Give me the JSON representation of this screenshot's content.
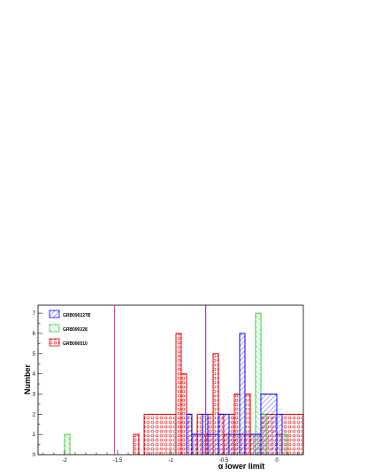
{
  "chart_data": {
    "type": "bar",
    "xlabel": "α lower limit",
    "ylabel": "Number",
    "xlim": [
      -2.25,
      0.25
    ],
    "ylim": [
      0,
      7.4
    ],
    "x_ticks": [
      "-2",
      "-1.5",
      "-1",
      "-0.5",
      "0"
    ],
    "y_ticks": [
      "0",
      "1",
      "2",
      "3",
      "4",
      "5",
      "6",
      "7"
    ],
    "legend_position": "top-left",
    "legend": [
      "GRB090227B",
      "GRB090228",
      "GRB090510"
    ],
    "bin_width": 0.05,
    "series": [
      {
        "name": "GRB090510",
        "color": "#e60000",
        "pattern": "hatched-circles",
        "bins": [
          {
            "x0": -1.35,
            "x1": -1.3,
            "value": 1
          },
          {
            "x0": -1.25,
            "x1": -0.95,
            "value": 2
          },
          {
            "x0": -0.95,
            "x1": -0.9,
            "value": 6
          },
          {
            "x0": -0.9,
            "x1": -0.85,
            "value": 4
          },
          {
            "x0": -0.85,
            "x1": -0.8,
            "value": 2
          },
          {
            "x0": -0.8,
            "x1": -0.75,
            "value": 1
          },
          {
            "x0": -0.75,
            "x1": -0.7,
            "value": 2
          },
          {
            "x0": -0.7,
            "x1": -0.65,
            "value": 1
          },
          {
            "x0": -0.65,
            "x1": -0.6,
            "value": 2
          },
          {
            "x0": -0.6,
            "x1": -0.55,
            "value": 5
          },
          {
            "x0": -0.55,
            "x1": -0.5,
            "value": 2
          },
          {
            "x0": -0.5,
            "x1": -0.45,
            "value": 1
          },
          {
            "x0": -0.45,
            "x1": -0.4,
            "value": 2
          },
          {
            "x0": -0.4,
            "x1": -0.35,
            "value": 3
          },
          {
            "x0": -0.35,
            "x1": -0.3,
            "value": 1
          },
          {
            "x0": -0.3,
            "x1": -0.25,
            "value": 3
          },
          {
            "x0": -0.25,
            "x1": -0.15,
            "value": 1
          },
          {
            "x0": -0.15,
            "x1": 0.0,
            "value": 2
          },
          {
            "x0": 0.0,
            "x1": 0.05,
            "value": 1
          },
          {
            "x0": 0.05,
            "x1": 0.25,
            "value": 2
          }
        ]
      },
      {
        "name": "GRB090228",
        "color": "#33cc33",
        "pattern": "hatched-diagonal",
        "bins": [
          {
            "x0": -2.0,
            "x1": -1.95,
            "value": 1
          },
          {
            "x0": -0.2,
            "x1": -0.15,
            "value": 7
          },
          {
            "x0": -0.15,
            "x1": -0.1,
            "value": 2
          },
          {
            "x0": 0.05,
            "x1": 0.1,
            "value": 1
          }
        ]
      },
      {
        "name": "GRB090227B",
        "color": "#0000ff",
        "pattern": "hatched-diagonal",
        "bins": [
          {
            "x0": -0.85,
            "x1": -0.8,
            "value": 2
          },
          {
            "x0": -0.8,
            "x1": -0.7,
            "value": 1
          },
          {
            "x0": -0.7,
            "x1": -0.65,
            "value": 2
          },
          {
            "x0": -0.65,
            "x1": -0.55,
            "value": 1
          },
          {
            "x0": -0.55,
            "x1": -0.45,
            "value": 2
          },
          {
            "x0": -0.45,
            "x1": -0.35,
            "value": 1
          },
          {
            "x0": -0.35,
            "x1": -0.3,
            "value": 6
          },
          {
            "x0": -0.3,
            "x1": -0.15,
            "value": 1
          },
          {
            "x0": -0.15,
            "x1": 0.0,
            "value": 3
          },
          {
            "x0": 0.0,
            "x1": 0.05,
            "value": 2
          }
        ]
      }
    ],
    "vertical_lines": [
      {
        "x": -1.53,
        "color": "#cc3366"
      },
      {
        "x": -0.67,
        "color": "#ff00ff"
      }
    ]
  }
}
